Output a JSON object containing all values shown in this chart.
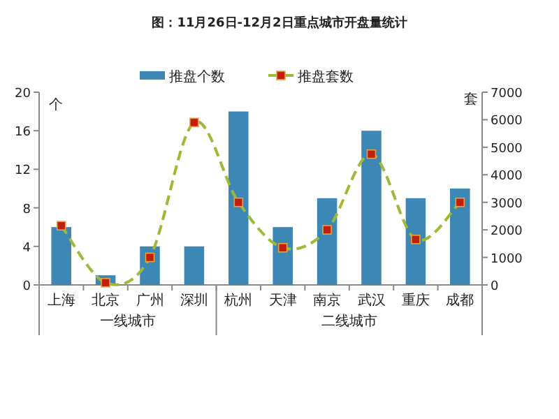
{
  "chart_data": {
    "type": "bar",
    "title": "图：11月26日-12月2日重点城市开盘量统计",
    "ylabel": "个",
    "y2label": "套",
    "categories": [
      "上海",
      "北京",
      "广州",
      "深圳",
      "杭州",
      "天津",
      "南京",
      "武汉",
      "重庆",
      "成都"
    ],
    "series": [
      {
        "name": "推盘个数",
        "color": "#3d87b5",
        "values": [
          6,
          1,
          4,
          4,
          18,
          6,
          9,
          16,
          9,
          10
        ]
      },
      {
        "name": "推盘套数",
        "type": "line",
        "axis": "y2",
        "color": "#9cba38",
        "marker": "square",
        "line_style": "dashed",
        "values": [
          2150,
          80,
          1000,
          5900,
          3000,
          1350,
          2000,
          4750,
          1650,
          3000
        ]
      }
    ],
    "ylim": [
      0,
      20
    ],
    "yticks": [
      0,
      4,
      8,
      12,
      16,
      20
    ],
    "y2lim": [
      0,
      7000
    ],
    "y2ticks": [
      0,
      1000,
      2000,
      3000,
      4000,
      5000,
      6000,
      7000
    ],
    "annotations": [
      "一线城市",
      "二线城市"
    ],
    "legend": "top",
    "grid": false
  }
}
